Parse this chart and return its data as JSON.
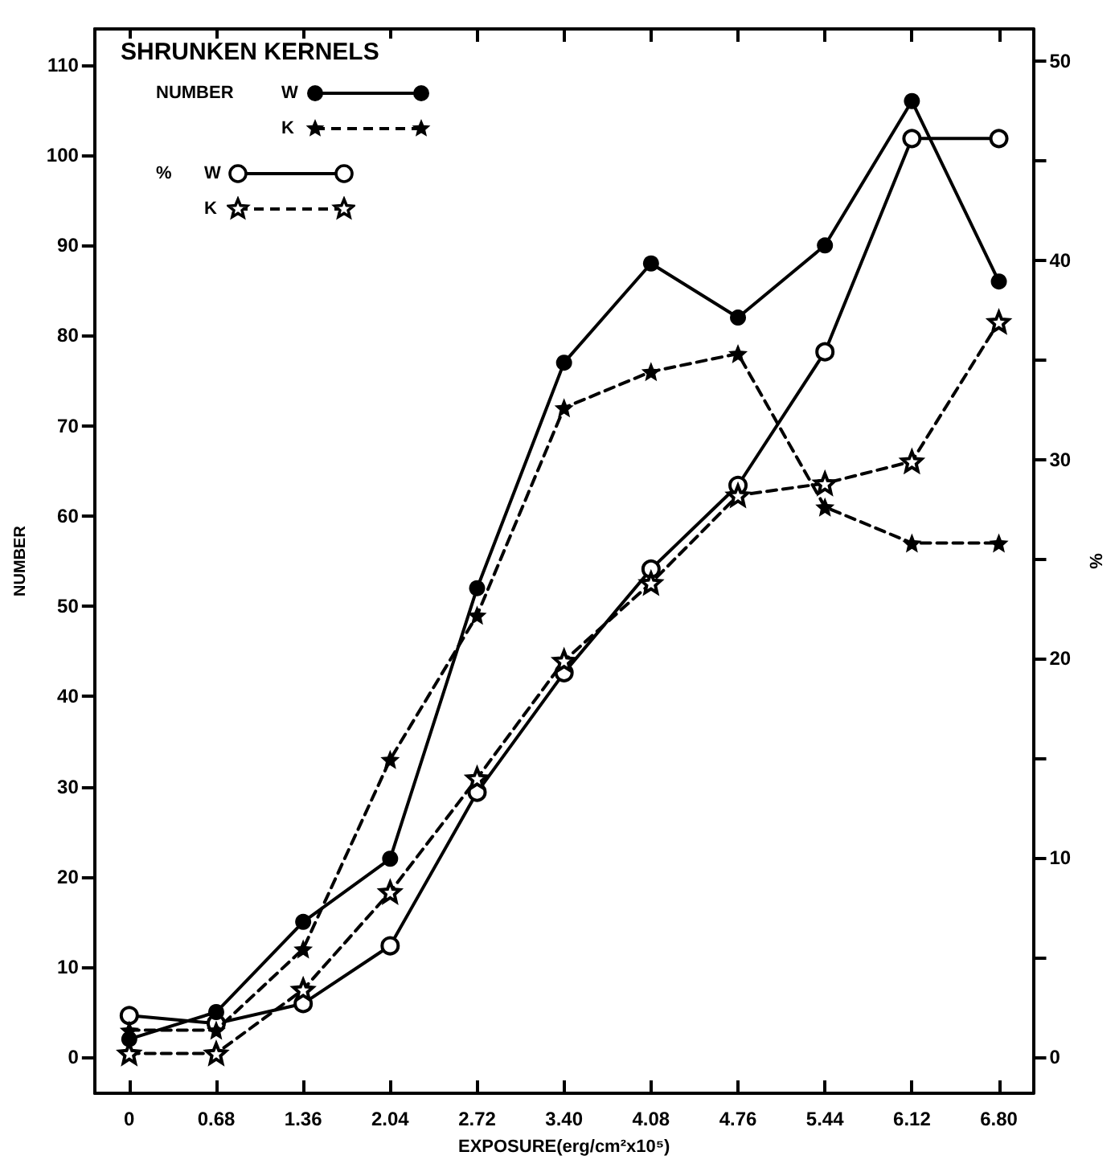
{
  "chart_data": {
    "type": "line",
    "legend_title": "SHRUNKEN KERNELS",
    "xlabel": "EXPOSURE(erg/cm²x10⁵)",
    "ylabel": "NUMBER",
    "y2label": "%",
    "annotations": [
      "NUMBER",
      "%"
    ],
    "x": [
      0,
      0.68,
      1.36,
      2.04,
      2.72,
      3.4,
      4.08,
      4.76,
      5.44,
      6.12,
      6.8
    ],
    "xlim": [
      -0.27,
      7.07
    ],
    "xticks": [
      0,
      0.68,
      1.36,
      2.04,
      2.72,
      {
        "value": 3.4,
        "label": "3.40"
      },
      4.08,
      4.76,
      5.44,
      6.12,
      {
        "value": 6.8,
        "label": "6.80"
      }
    ],
    "ylim": [
      -4,
      114
    ],
    "yticks": [
      0,
      10,
      20,
      30,
      40,
      50,
      60,
      70,
      80,
      90,
      100,
      110
    ],
    "y2lim": [
      -1.8,
      51.6
    ],
    "y2ticks": [
      0,
      {
        "value": 5,
        "label": null
      },
      10,
      {
        "value": 15,
        "label": null
      },
      20,
      {
        "value": 25,
        "label": null
      },
      30,
      {
        "value": 35,
        "label": null
      },
      40,
      {
        "value": 45,
        "label": null
      },
      50
    ],
    "legend": "top left",
    "series": [
      {
        "name": "W",
        "color": "#000000",
        "marker": "circle",
        "line_style": "solid",
        "values": [
          2,
          5,
          15,
          22,
          52,
          77,
          88,
          82,
          90,
          106,
          86
        ]
      },
      {
        "name": "K",
        "color": "#000000",
        "marker": "star",
        "line_style": "dashed",
        "values": [
          3,
          3,
          12,
          33,
          49,
          72,
          76,
          78,
          61,
          57,
          57
        ]
      },
      {
        "name": "W",
        "color": "#000000",
        "marker": "circle",
        "line_style": "solid",
        "axis": "y2",
        "values": [
          2.1,
          1.7,
          2.7,
          5.6,
          13.3,
          19.3,
          24.5,
          28.7,
          35.4,
          46.1,
          46.1
        ]
      },
      {
        "name": "K",
        "color": "#000000",
        "marker": "star",
        "line_style": "dashed",
        "axis": "y2",
        "values": [
          0.2,
          0.2,
          3.4,
          8.3,
          14,
          19.9,
          23.8,
          28.2,
          28.8,
          29.9,
          36.9
        ]
      }
    ]
  }
}
